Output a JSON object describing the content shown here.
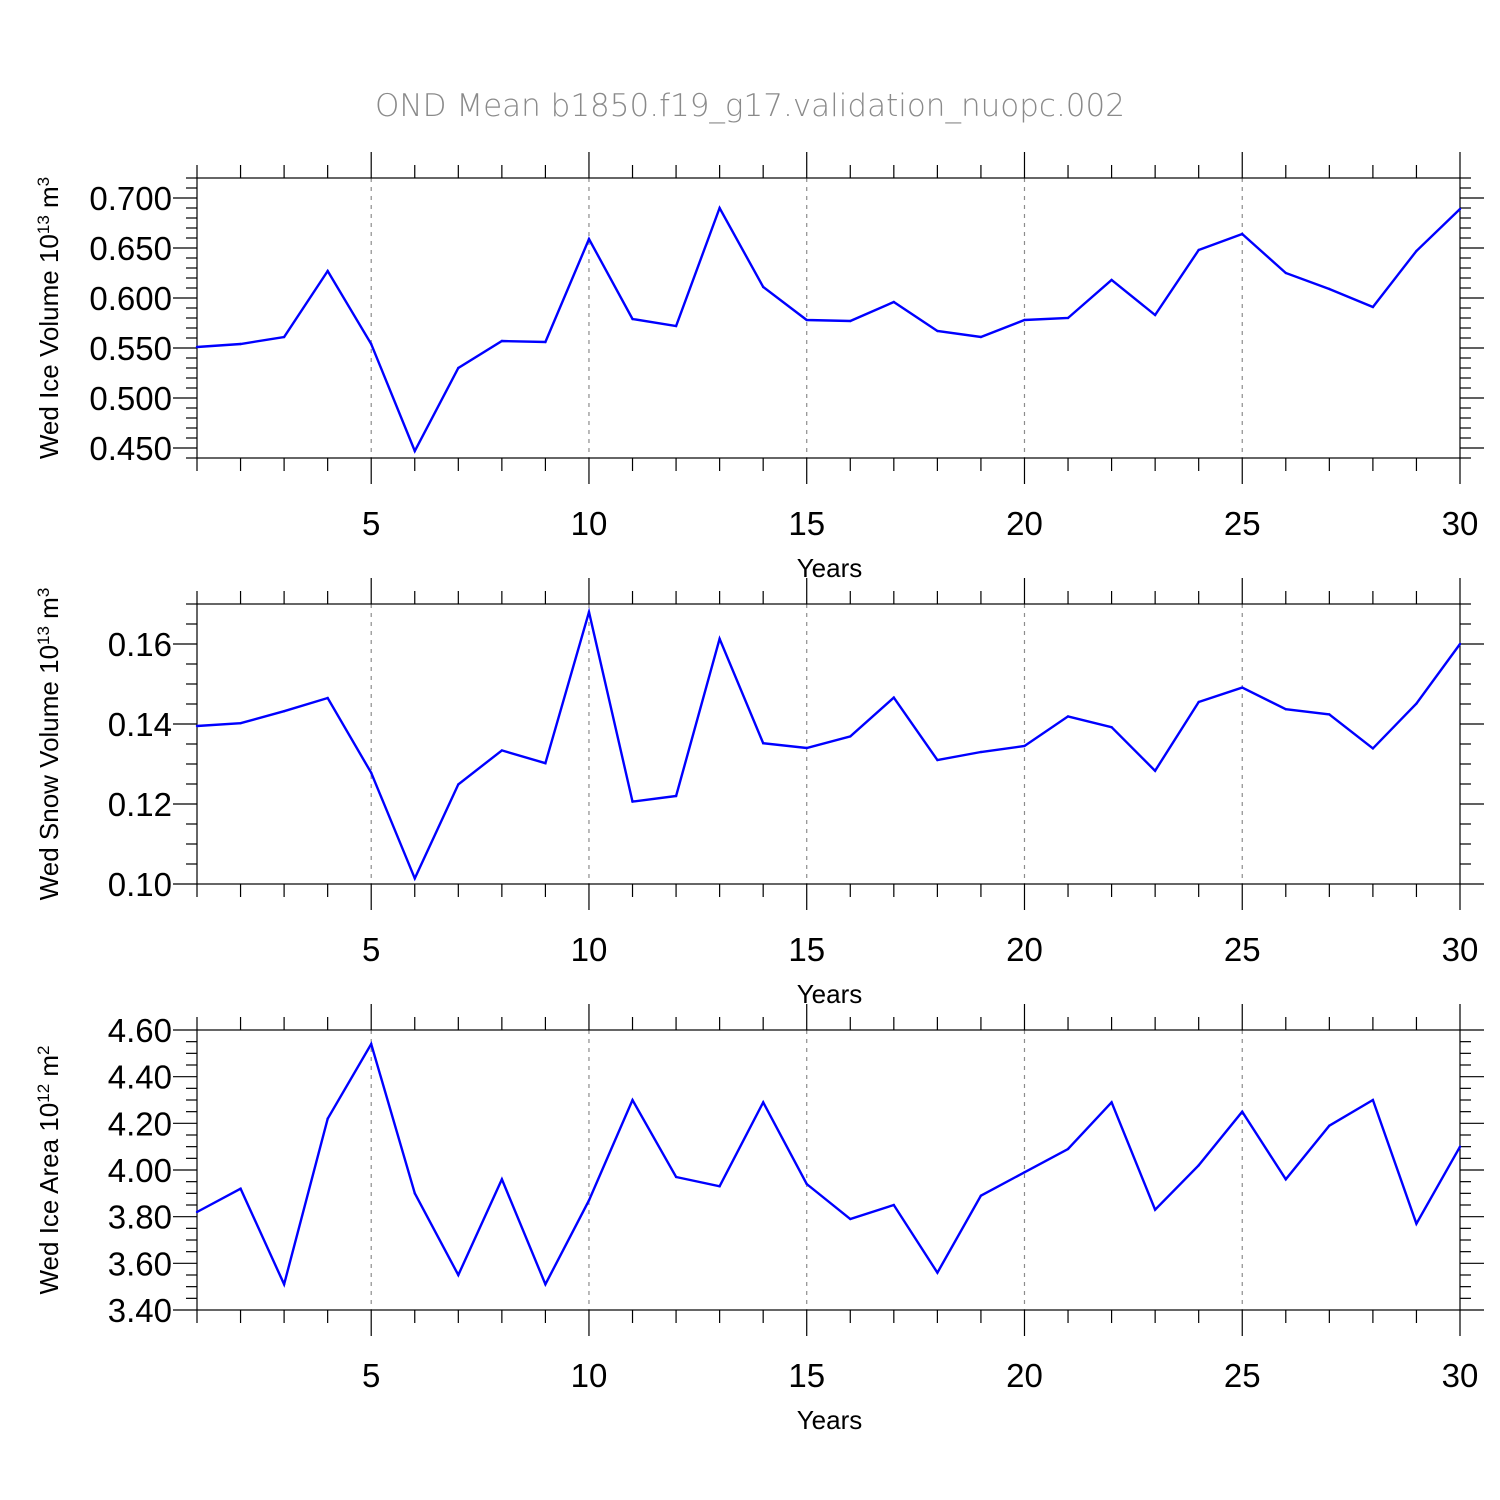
{
  "title": "OND Mean b1850.f19_g17.validation_nuopc.002",
  "colors": {
    "line": "#0000ff",
    "title": "#8a8a8a",
    "grid": "#8c8c8c"
  },
  "chart_data": [
    {
      "type": "line",
      "ylabel_main": "Wed Ice Volume 10",
      "ylabel_exp": "13",
      "ylabel_unit": "m",
      "ylabel_unit_exp": "3",
      "xlabel": "Years",
      "xlim": [
        1,
        30
      ],
      "ylim": [
        0.44,
        0.72
      ],
      "x_ticks": [
        5,
        10,
        15,
        20,
        25,
        30
      ],
      "x_tick_labels": [
        "5",
        "10",
        "15",
        "20",
        "25",
        "30"
      ],
      "y_ticks": [
        0.45,
        0.5,
        0.55,
        0.6,
        0.65,
        0.7
      ],
      "y_tick_labels": [
        "0.450",
        "0.500",
        "0.550",
        "0.600",
        "0.650",
        "0.700"
      ],
      "y_minor_step": 0.01,
      "grid": "x-major dashed",
      "x": [
        1,
        2,
        3,
        4,
        5,
        6,
        7,
        8,
        9,
        10,
        11,
        12,
        13,
        14,
        15,
        16,
        17,
        18,
        19,
        20,
        21,
        22,
        23,
        24,
        25,
        26,
        27,
        28,
        29,
        30
      ],
      "values": [
        0.551,
        0.554,
        0.561,
        0.627,
        0.554,
        0.447,
        0.53,
        0.557,
        0.556,
        0.659,
        0.579,
        0.572,
        0.69,
        0.611,
        0.578,
        0.577,
        0.596,
        0.567,
        0.561,
        0.578,
        0.58,
        0.618,
        0.583,
        0.648,
        0.664,
        0.625,
        0.609,
        0.591,
        0.647,
        0.689
      ]
    },
    {
      "type": "line",
      "ylabel_main": "Wed Snow Volume 10",
      "ylabel_exp": "13",
      "ylabel_unit": "m",
      "ylabel_unit_exp": "3",
      "xlabel": "Years",
      "xlim": [
        1,
        30
      ],
      "ylim": [
        0.1,
        0.17
      ],
      "x_ticks": [
        5,
        10,
        15,
        20,
        25,
        30
      ],
      "x_tick_labels": [
        "5",
        "10",
        "15",
        "20",
        "25",
        "30"
      ],
      "y_ticks": [
        0.1,
        0.12,
        0.14,
        0.16
      ],
      "y_tick_labels": [
        "0.10",
        "0.12",
        "0.14",
        "0.16"
      ],
      "y_minor_step": 0.005,
      "grid": "x-major dashed",
      "x": [
        1,
        2,
        3,
        4,
        5,
        6,
        7,
        8,
        9,
        10,
        11,
        12,
        13,
        14,
        15,
        16,
        17,
        18,
        19,
        20,
        21,
        22,
        23,
        24,
        25,
        26,
        27,
        28,
        29,
        30
      ],
      "values": [
        0.1395,
        0.1402,
        0.1432,
        0.1465,
        0.1278,
        0.1014,
        0.1249,
        0.1334,
        0.1302,
        0.168,
        0.1206,
        0.122,
        0.1613,
        0.1352,
        0.134,
        0.1369,
        0.1466,
        0.131,
        0.133,
        0.1345,
        0.1419,
        0.1392,
        0.1283,
        0.1455,
        0.1491,
        0.1437,
        0.1424,
        0.1339,
        0.1451,
        0.16
      ]
    },
    {
      "type": "line",
      "ylabel_main": "Wed Ice Area 10",
      "ylabel_exp": "12",
      "ylabel_unit": "m",
      "ylabel_unit_exp": "2",
      "xlabel": "Years",
      "xlim": [
        1,
        30
      ],
      "ylim": [
        3.4,
        4.6
      ],
      "x_ticks": [
        5,
        10,
        15,
        20,
        25,
        30
      ],
      "x_tick_labels": [
        "5",
        "10",
        "15",
        "20",
        "25",
        "30"
      ],
      "y_ticks": [
        3.4,
        3.6,
        3.8,
        4.0,
        4.2,
        4.4,
        4.6
      ],
      "y_tick_labels": [
        "3.40",
        "3.60",
        "3.80",
        "4.00",
        "4.20",
        "4.40",
        "4.60"
      ],
      "y_minor_step": 0.05,
      "grid": "x-major dashed",
      "x": [
        1,
        2,
        3,
        4,
        5,
        6,
        7,
        8,
        9,
        10,
        11,
        12,
        13,
        14,
        15,
        16,
        17,
        18,
        19,
        20,
        21,
        22,
        23,
        24,
        25,
        26,
        27,
        28,
        29,
        30
      ],
      "values": [
        3.82,
        3.92,
        3.51,
        4.22,
        4.54,
        3.9,
        3.55,
        3.96,
        3.51,
        3.87,
        4.3,
        3.97,
        3.93,
        4.29,
        3.94,
        3.79,
        3.85,
        3.56,
        3.89,
        3.99,
        4.09,
        4.29,
        3.83,
        4.02,
        4.25,
        3.96,
        4.19,
        4.3,
        3.77,
        4.1
      ]
    }
  ]
}
